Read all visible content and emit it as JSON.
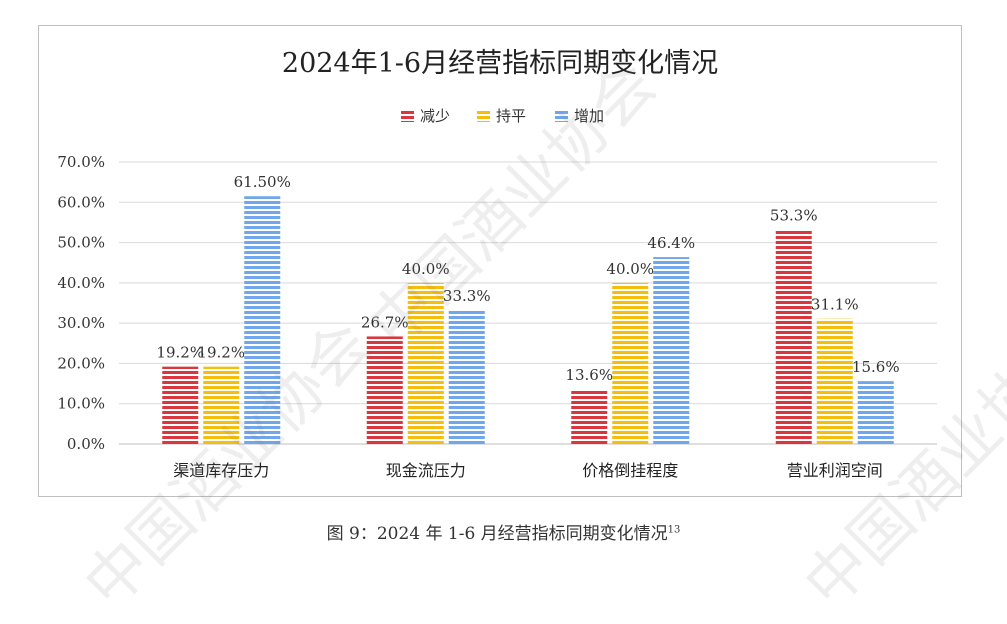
{
  "chart_data": {
    "type": "bar",
    "title": "2024年1-6月经营指标同期变化情况",
    "categories": [
      "渠道库存压力",
      "现金流压力",
      "价格倒挂程度",
      "营业利润空间"
    ],
    "series": [
      {
        "name": "减少",
        "color": "#d9363e",
        "values": [
          19.2,
          26.7,
          13.6,
          53.3
        ],
        "labels": [
          "19.2%",
          "26.7%",
          "13.6%",
          "53.3%"
        ]
      },
      {
        "name": "持平",
        "color": "#f5be0b",
        "values": [
          19.2,
          40.0,
          40.0,
          31.1
        ],
        "labels": [
          "19.2%",
          "40.0%",
          "40.0%",
          "31.1%"
        ]
      },
      {
        "name": "增加",
        "color": "#6fa6ec",
        "values": [
          61.5,
          33.3,
          46.4,
          15.6
        ],
        "labels": [
          "61.50%",
          "33.3%",
          "46.4%",
          "15.6%"
        ]
      }
    ],
    "yticks": [
      "0.0%",
      "10.0%",
      "20.0%",
      "30.0%",
      "40.0%",
      "50.0%",
      "60.0%",
      "70.0%"
    ],
    "ylim": [
      0,
      70
    ],
    "grid": true,
    "legend": "top-center",
    "pattern": "horizontal-stripes"
  },
  "caption": {
    "text": "图 9：2024 年 1-6 月经营指标同期变化情况",
    "footnote": "13"
  },
  "watermark": "中国酒业协会"
}
